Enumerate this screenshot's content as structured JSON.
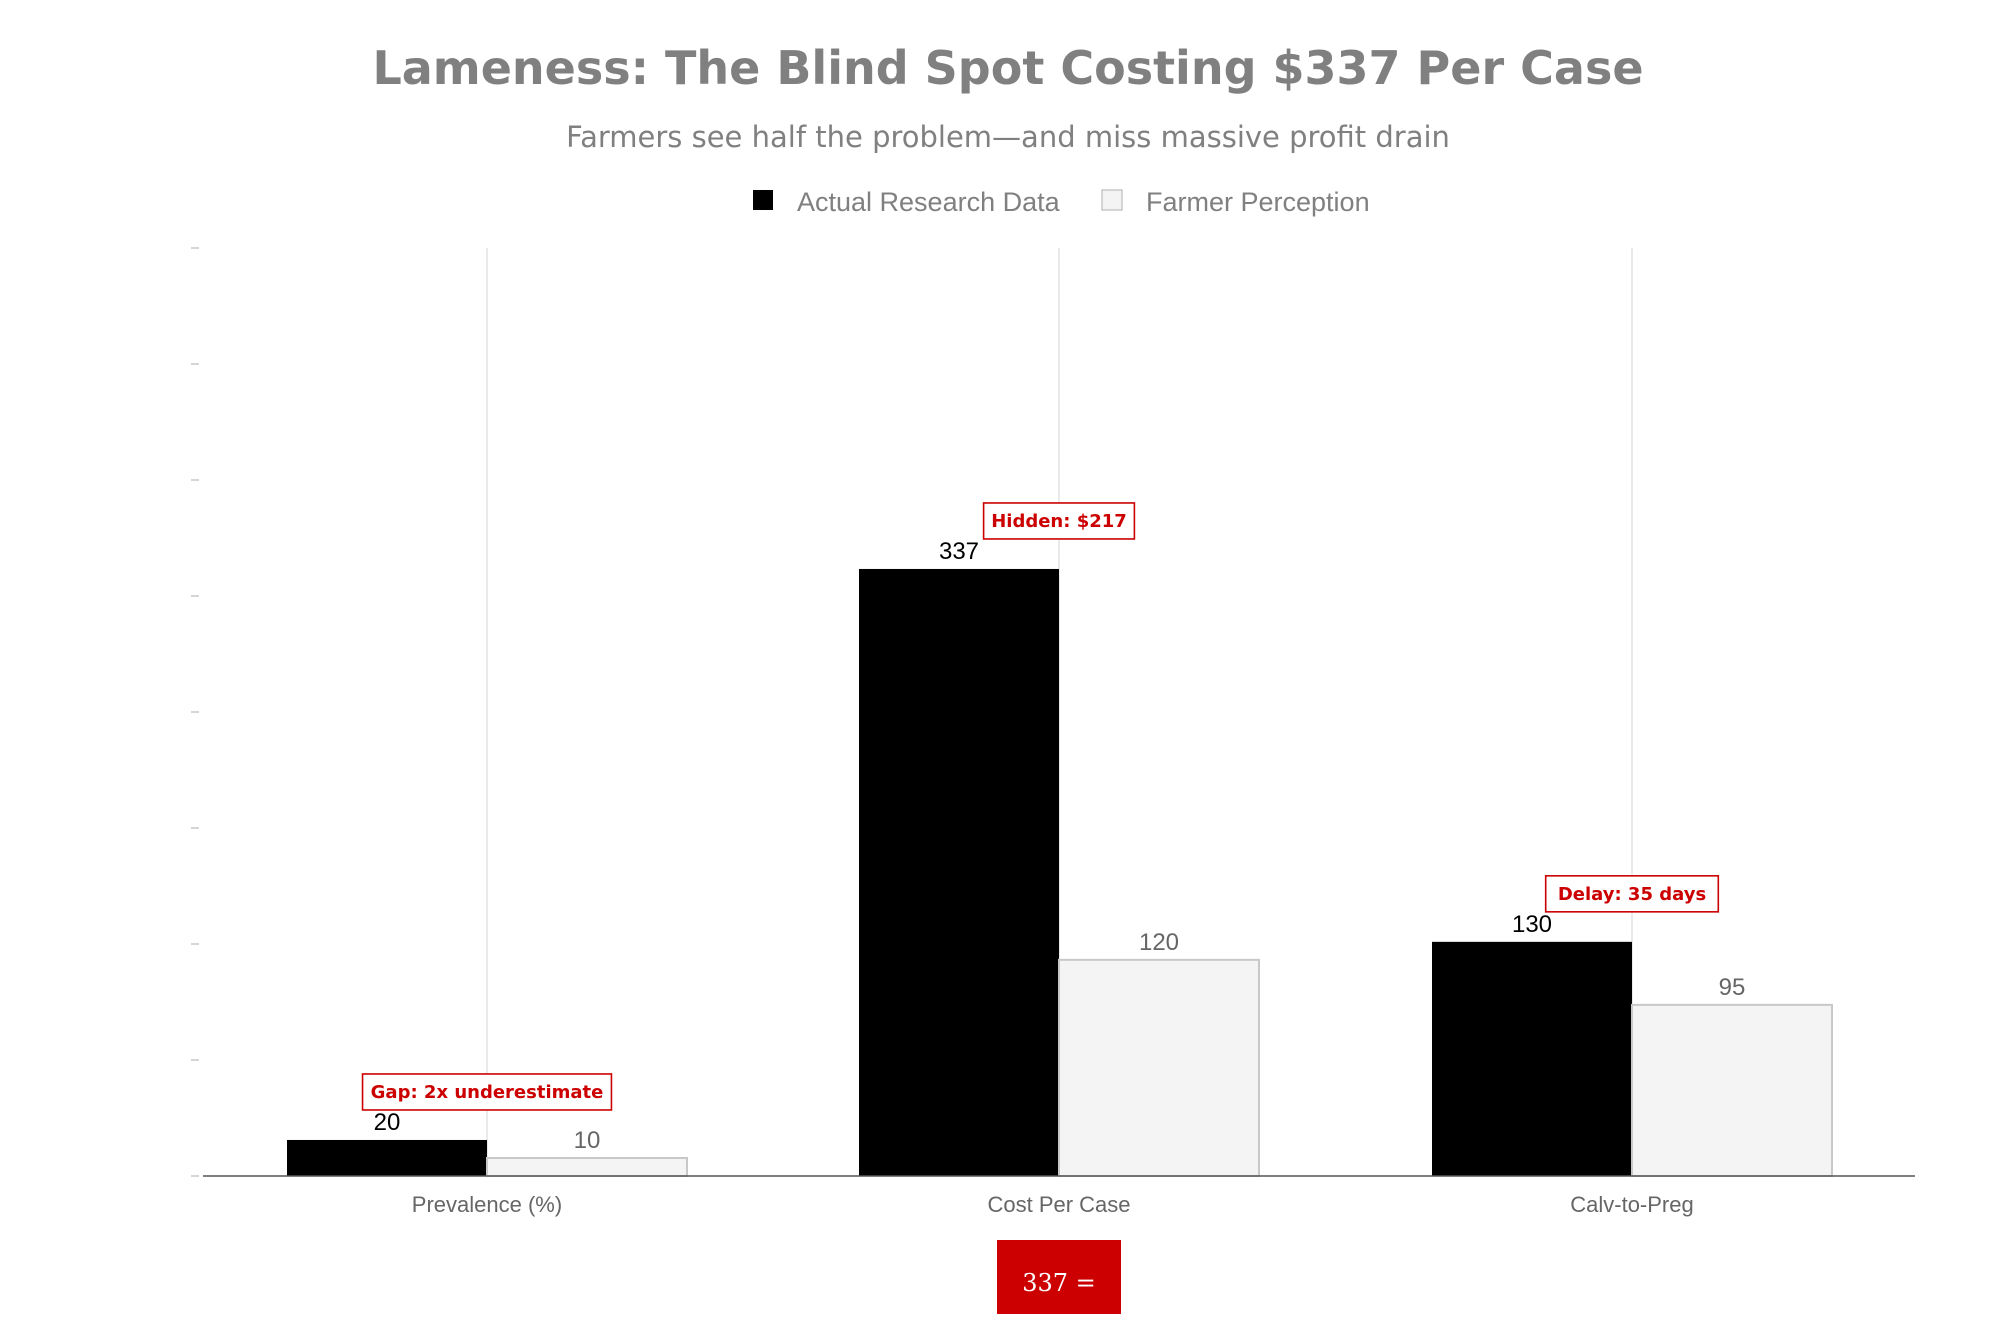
{
  "chart_data": {
    "type": "bar",
    "title": "Lameness: The Blind Spot Costing $337 Per Case",
    "subtitle": "Farmers see half the problem—and miss massive profit drain",
    "categories": [
      "Prevalence (%)",
      "Cost Per Case",
      "Calv-to-Preg"
    ],
    "series": [
      {
        "name": "Actual Research Data",
        "values": [
          20,
          337,
          130
        ],
        "color": "#000000"
      },
      {
        "name": "Farmer Perception",
        "values": [
          10,
          120,
          95
        ],
        "color": "#f4f4f4"
      }
    ],
    "ylim": [
      0,
      400
    ],
    "grid": "vertical",
    "legend": "top-center",
    "annotations": [
      {
        "text": "Gap: 2x underestimate",
        "category": 0
      },
      {
        "text": "Hidden: $217",
        "category": 1
      },
      {
        "text": "Delay: 35 days",
        "category": 2
      }
    ],
    "badge": "337 ="
  },
  "colors": {
    "title": "#808080",
    "actual": "#000000",
    "perception": "#f4f4f4",
    "perception_border": "#c8c8c8",
    "accent_red": "#cc0000",
    "text_gray": "#666666",
    "grid": "#dcdcdc"
  }
}
